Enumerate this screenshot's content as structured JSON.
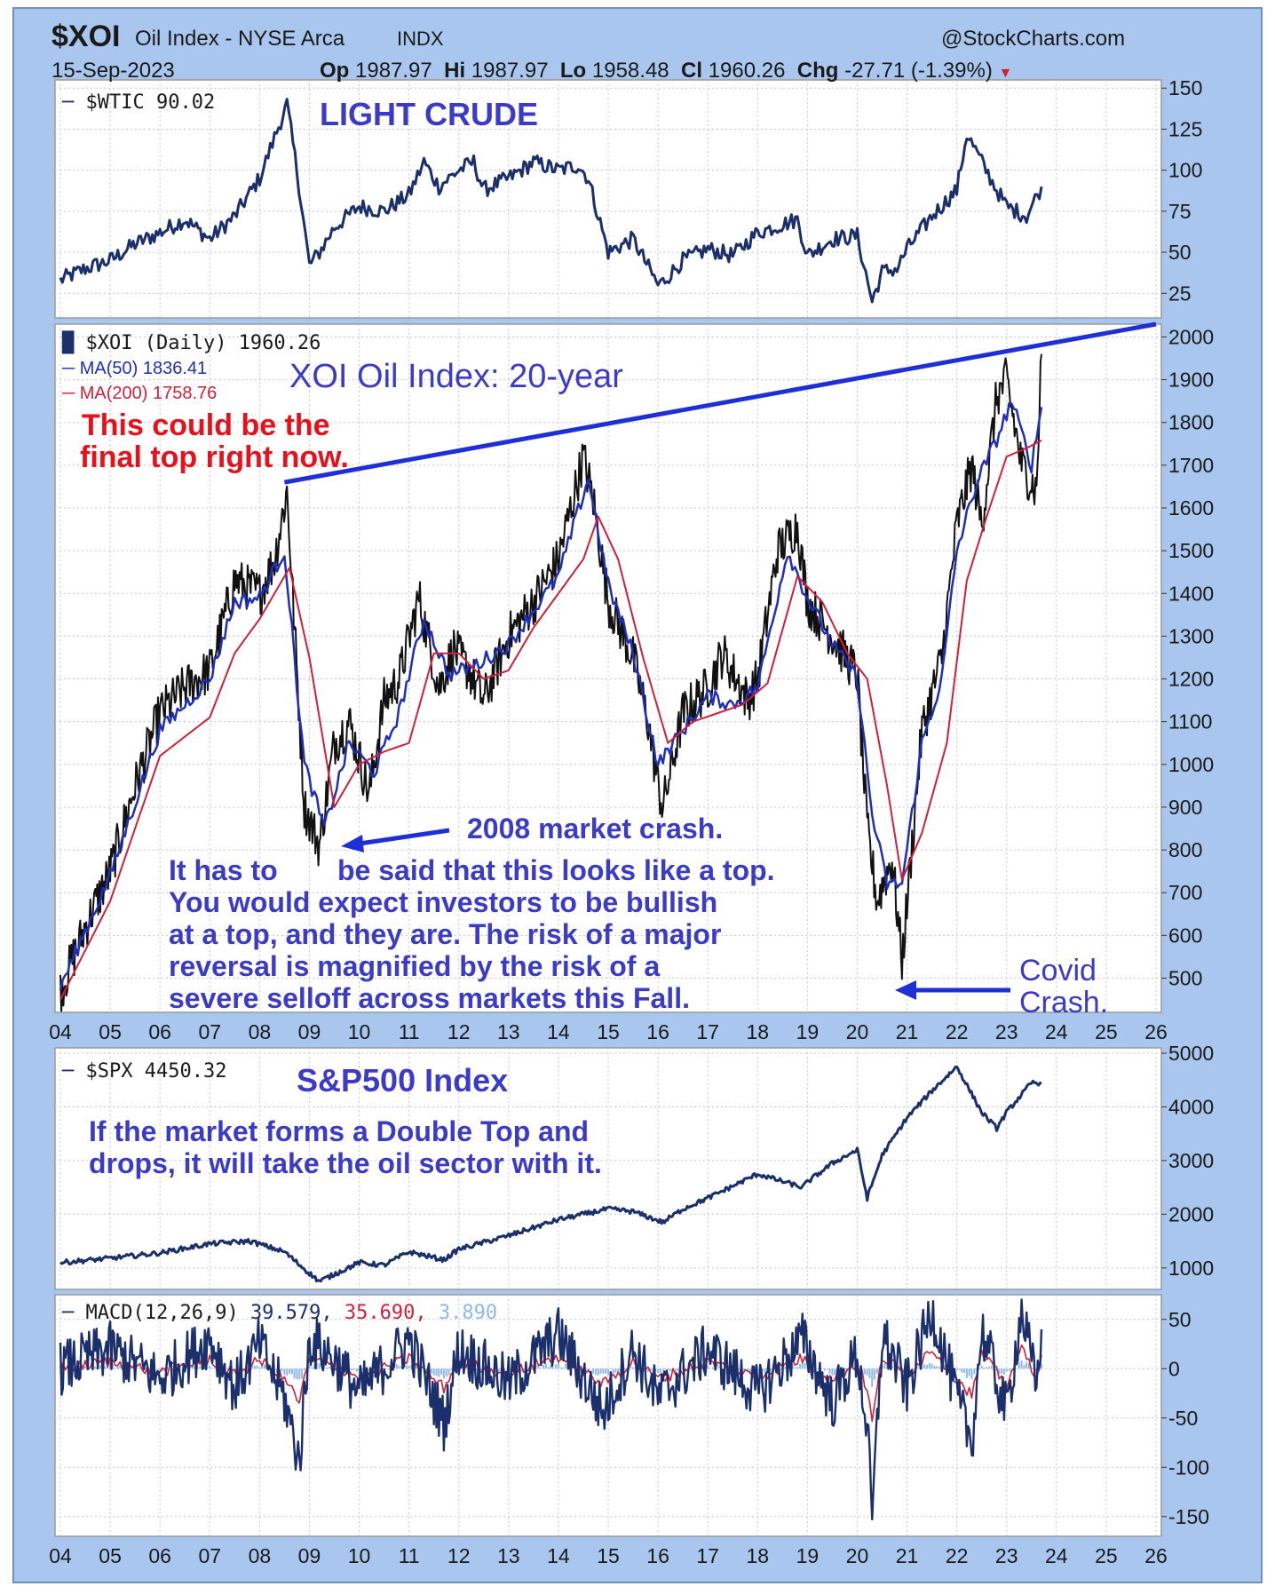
{
  "header": {
    "symbol": "$XOI",
    "name": "Oil Index - NYSE Arca",
    "exchange": "INDX",
    "source": "@StockCharts.com",
    "date": "15-Sep-2023",
    "op_label": "Op",
    "op_value": "1987.97",
    "hi_label": "Hi",
    "hi_value": "1987.97",
    "lo_label": "Lo",
    "lo_value": "1958.48",
    "cl_label": "Cl",
    "cl_value": "1960.26",
    "chg_label": "Chg",
    "chg_value": "-27.71 (-1.39%)"
  },
  "colors": {
    "background": "#a8c6ee",
    "panel": "#ffffff",
    "price_line": "#1a2f6b",
    "ma50": "#1f2fb8",
    "ma200": "#d0203a",
    "trendline": "#1f2fd8",
    "annotation_blue": "#3b3bc8",
    "annotation_red": "#e8101a",
    "macd_signal": "#d0203a",
    "macd_hist": "#8fb8ea"
  },
  "x_axis_labels": [
    "04",
    "05",
    "06",
    "07",
    "08",
    "09",
    "10",
    "11",
    "12",
    "13",
    "14",
    "15",
    "16",
    "17",
    "18",
    "19",
    "20",
    "21",
    "22",
    "23",
    "24",
    "25",
    "26"
  ],
  "chart_data": [
    {
      "type": "line",
      "panel": "wtic",
      "legend": "$WTIC 90.02",
      "title": "LIGHT CRUDE",
      "ylim": [
        10,
        155
      ],
      "yticks": [
        25,
        50,
        75,
        100,
        125,
        150
      ],
      "series": [
        {
          "name": "$WTIC",
          "x": [
            2004.0,
            2004.5,
            2005.0,
            2005.5,
            2006.0,
            2006.5,
            2007.0,
            2007.5,
            2008.0,
            2008.3,
            2008.55,
            2008.75,
            2009.0,
            2009.2,
            2009.5,
            2010.0,
            2010.5,
            2011.0,
            2011.3,
            2011.6,
            2012.0,
            2012.3,
            2012.5,
            2013.0,
            2013.5,
            2014.0,
            2014.4,
            2014.6,
            2015.0,
            2015.5,
            2016.0,
            2016.1,
            2016.5,
            2017.0,
            2017.5,
            2018.0,
            2018.8,
            2019.0,
            2019.5,
            2020.0,
            2020.3,
            2020.5,
            2020.8,
            2021.0,
            2021.5,
            2022.0,
            2022.2,
            2022.5,
            2022.8,
            2023.0,
            2023.4,
            2023.7
          ],
          "values": [
            33,
            40,
            45,
            55,
            62,
            70,
            58,
            72,
            95,
            120,
            140,
            100,
            42,
            50,
            65,
            78,
            75,
            85,
            105,
            90,
            100,
            105,
            88,
            95,
            105,
            100,
            103,
            95,
            50,
            58,
            30,
            32,
            45,
            52,
            48,
            62,
            70,
            48,
            58,
            60,
            20,
            38,
            40,
            52,
            72,
            88,
            122,
            105,
            88,
            78,
            72,
            90
          ]
        }
      ]
    },
    {
      "type": "line",
      "panel": "xoi",
      "legend_main": "$XOI (Daily) 1960.26",
      "legend_ma50": "MA(50) 1836.41",
      "legend_ma200": "MA(200) 1758.76",
      "title": "XOI Oil Index: 20-year",
      "ylim": [
        420,
        2030
      ],
      "yticks": [
        500,
        600,
        700,
        800,
        900,
        1000,
        1100,
        1200,
        1300,
        1400,
        1500,
        1600,
        1700,
        1800,
        1900,
        2000
      ],
      "series": [
        {
          "name": "$XOI",
          "x": [
            2004.0,
            2004.5,
            2005.0,
            2005.5,
            2006.0,
            2006.5,
            2007.0,
            2007.5,
            2008.0,
            2008.3,
            2008.55,
            2008.9,
            2009.2,
            2009.5,
            2009.8,
            2010.2,
            2010.5,
            2010.8,
            2011.2,
            2011.6,
            2011.9,
            2012.2,
            2012.5,
            2013.0,
            2013.5,
            2014.0,
            2014.5,
            2014.7,
            2015.0,
            2015.5,
            2015.8,
            2016.0,
            2016.1,
            2016.5,
            2017.0,
            2017.3,
            2017.8,
            2018.0,
            2018.4,
            2018.8,
            2019.0,
            2019.5,
            2020.0,
            2020.2,
            2020.4,
            2020.7,
            2020.9,
            2021.3,
            2021.7,
            2022.0,
            2022.3,
            2022.5,
            2022.8,
            2023.0,
            2023.3,
            2023.6,
            2023.7
          ],
          "values": [
            470,
            620,
            750,
            950,
            1120,
            1180,
            1220,
            1430,
            1400,
            1480,
            1640,
            900,
            810,
            1050,
            1100,
            930,
            1150,
            1200,
            1390,
            1180,
            1270,
            1220,
            1150,
            1300,
            1380,
            1480,
            1720,
            1620,
            1380,
            1250,
            1100,
            950,
            900,
            1120,
            1180,
            1260,
            1150,
            1200,
            1500,
            1560,
            1380,
            1300,
            1210,
            850,
            680,
            780,
            540,
            1080,
            1250,
            1560,
            1700,
            1560,
            1860,
            1900,
            1700,
            1640,
            1960
          ]
        },
        {
          "name": "MA(50)",
          "x": [
            2004.0,
            2005.0,
            2006.0,
            2007.0,
            2007.5,
            2008.0,
            2008.5,
            2008.9,
            2009.3,
            2009.8,
            2010.3,
            2010.8,
            2011.3,
            2011.8,
            2012.3,
            2013.0,
            2013.5,
            2014.0,
            2014.6,
            2015.0,
            2015.5,
            2016.0,
            2016.5,
            2017.0,
            2017.5,
            2018.0,
            2018.6,
            2019.0,
            2019.5,
            2020.0,
            2020.3,
            2020.6,
            2020.9,
            2021.3,
            2021.7,
            2022.0,
            2022.4,
            2022.8,
            2023.1,
            2023.5,
            2023.7
          ],
          "values": [
            480,
            740,
            1080,
            1200,
            1380,
            1390,
            1500,
            1000,
            850,
            1050,
            980,
            1120,
            1340,
            1210,
            1230,
            1280,
            1360,
            1440,
            1670,
            1420,
            1260,
            1000,
            1080,
            1160,
            1140,
            1180,
            1500,
            1390,
            1280,
            1200,
            880,
            720,
            720,
            1050,
            1200,
            1500,
            1660,
            1760,
            1850,
            1700,
            1836
          ]
        },
        {
          "name": "MA(200)",
          "x": [
            2004.0,
            2005.0,
            2006.0,
            2007.0,
            2007.5,
            2008.0,
            2008.6,
            2009.0,
            2009.5,
            2010.0,
            2010.5,
            2011.0,
            2011.5,
            2012.0,
            2012.5,
            2013.0,
            2013.5,
            2014.0,
            2014.5,
            2014.8,
            2015.2,
            2015.7,
            2016.2,
            2016.7,
            2017.2,
            2017.7,
            2018.2,
            2018.8,
            2019.3,
            2019.8,
            2020.2,
            2020.6,
            2020.9,
            2021.3,
            2021.8,
            2022.2,
            2022.6,
            2023.0,
            2023.4,
            2023.7
          ],
          "values": [
            450,
            680,
            1020,
            1110,
            1260,
            1340,
            1460,
            1250,
            900,
            1000,
            1030,
            1050,
            1260,
            1260,
            1200,
            1220,
            1320,
            1400,
            1480,
            1580,
            1480,
            1250,
            1050,
            1100,
            1120,
            1140,
            1190,
            1440,
            1380,
            1260,
            1200,
            950,
            730,
            840,
            1050,
            1430,
            1580,
            1720,
            1740,
            1758
          ]
        }
      ],
      "trendline": {
        "x": [
          2008.5,
          2026.0
        ],
        "values": [
          1660,
          2030
        ]
      },
      "annotations": {
        "red_note_line1": "This could be the",
        "red_note_line2": "final top right now.",
        "crash_2008": "2008 market crash.",
        "covid_line1": "Covid",
        "covid_line2": "Crash.",
        "body_line1a": "It has to",
        "body_line1b": "be said that this looks like a top.",
        "body_line2": "You would expect investors to be bullish",
        "body_line3": "at a top, and they are. The risk of a major",
        "body_line4": "reversal is magnified by the risk of a",
        "body_line5": "severe selloff across markets this Fall."
      }
    },
    {
      "type": "line",
      "panel": "spx",
      "legend": "$SPX 4450.32",
      "title": "S&P500 Index",
      "note_line1": "If the market forms a Double Top and",
      "note_line2": "drops, it will take the oil sector with it.",
      "ylim": [
        600,
        5100
      ],
      "yticks": [
        1000,
        2000,
        3000,
        4000,
        5000
      ],
      "series": [
        {
          "name": "$SPX",
          "x": [
            2004.0,
            2005.0,
            2006.0,
            2007.0,
            2007.8,
            2008.5,
            2009.0,
            2009.2,
            2010.0,
            2010.5,
            2011.0,
            2011.7,
            2012.0,
            2013.0,
            2014.0,
            2015.0,
            2015.5,
            2016.1,
            2016.5,
            2017.0,
            2018.0,
            2018.9,
            2019.0,
            2019.5,
            2020.0,
            2020.2,
            2020.5,
            2021.0,
            2021.5,
            2022.0,
            2022.5,
            2022.8,
            2023.0,
            2023.5,
            2023.7
          ],
          "values": [
            1100,
            1180,
            1280,
            1450,
            1500,
            1300,
            900,
            750,
            1100,
            1050,
            1300,
            1150,
            1350,
            1600,
            1900,
            2100,
            2050,
            1850,
            2100,
            2300,
            2750,
            2500,
            2600,
            2950,
            3200,
            2300,
            3100,
            3800,
            4300,
            4750,
            3900,
            3600,
            3900,
            4450,
            4450
          ]
        }
      ]
    },
    {
      "type": "line",
      "panel": "macd",
      "legend_main": "MACD(12,26,9)",
      "macd_value": "39.579,",
      "signal_value": "35.690,",
      "hist_value": "3.890",
      "ylim": [
        -170,
        75
      ],
      "yticks": [
        -150,
        -100,
        -50,
        0,
        50
      ],
      "series": [
        {
          "name": "MACD",
          "x": [
            2004.0,
            2005.0,
            2006.0,
            2007.0,
            2007.5,
            2008.0,
            2008.5,
            2008.8,
            2009.0,
            2009.5,
            2010.0,
            2011.0,
            2011.7,
            2012.0,
            2013.0,
            2014.0,
            2014.9,
            2015.5,
            2016.0,
            2017.0,
            2018.0,
            2018.9,
            2019.5,
            2020.0,
            2020.2,
            2020.3,
            2020.5,
            2021.0,
            2021.5,
            2022.0,
            2022.3,
            2022.5,
            2023.0,
            2023.3,
            2023.6,
            2023.7
          ],
          "values": [
            0,
            20,
            -10,
            30,
            -20,
            25,
            -30,
            -95,
            30,
            10,
            -25,
            30,
            -55,
            20,
            -15,
            35,
            -45,
            20,
            -30,
            20,
            -25,
            30,
            -35,
            15,
            -60,
            -155,
            35,
            -20,
            60,
            -30,
            -75,
            40,
            -45,
            60,
            -20,
            40
          ]
        }
      ]
    }
  ]
}
